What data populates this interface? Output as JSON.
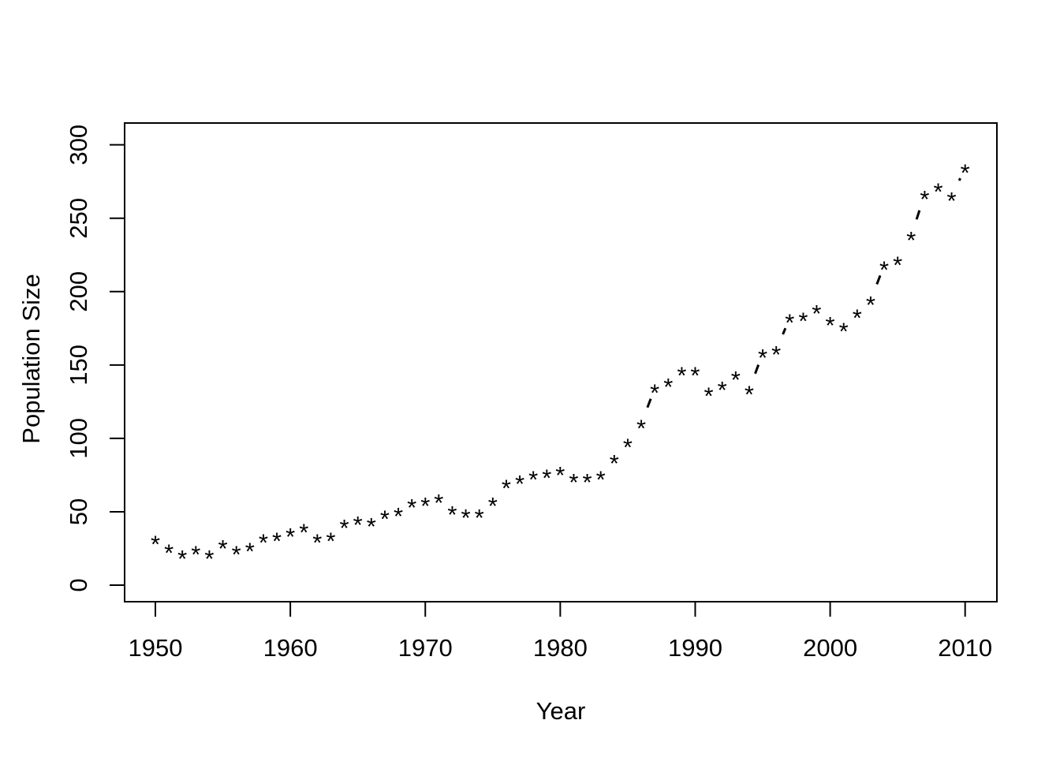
{
  "figure": {
    "background_color": "#ffffff",
    "foreground_color": "#000000"
  },
  "chart_data": {
    "type": "scatter",
    "subtype": "points-with-dashed-line (R type='b', lty=2, pch='*')",
    "title": "",
    "xlabel": "Year",
    "ylabel": "Population Size",
    "marker": "*",
    "line_style": "dashed",
    "grid": false,
    "legend": "none",
    "xlim": [
      1950,
      2010
    ],
    "ylim": [
      0,
      300
    ],
    "x_ticks": [
      1950,
      1960,
      1970,
      1980,
      1990,
      2000,
      2010
    ],
    "y_ticks": [
      0,
      50,
      100,
      150,
      200,
      250,
      300
    ],
    "x": [
      1950,
      1951,
      1952,
      1953,
      1954,
      1955,
      1956,
      1957,
      1958,
      1959,
      1960,
      1961,
      1962,
      1963,
      1964,
      1965,
      1966,
      1967,
      1968,
      1969,
      1970,
      1971,
      1972,
      1973,
      1974,
      1975,
      1976,
      1977,
      1978,
      1979,
      1980,
      1981,
      1982,
      1983,
      1984,
      1985,
      1986,
      1987,
      1988,
      1989,
      1990,
      1991,
      1992,
      1993,
      1994,
      1995,
      1996,
      1997,
      1998,
      1999,
      2000,
      2001,
      2002,
      2003,
      2004,
      2005,
      2006,
      2007,
      2008,
      2009,
      2010
    ],
    "values": [
      31,
      25,
      21,
      24,
      21,
      28,
      24,
      26,
      32,
      33,
      36,
      39,
      32,
      33,
      42,
      44,
      43,
      48,
      50,
      56,
      57,
      59,
      51,
      49,
      49,
      57,
      69,
      72,
      75,
      76,
      78,
      73,
      73,
      75,
      86,
      97,
      110,
      134,
      138,
      146,
      146,
      132,
      136,
      143,
      133,
      158,
      160,
      182,
      183,
      188,
      180,
      176,
      185,
      194,
      218,
      221,
      238,
      266,
      271,
      265,
      284
    ]
  }
}
